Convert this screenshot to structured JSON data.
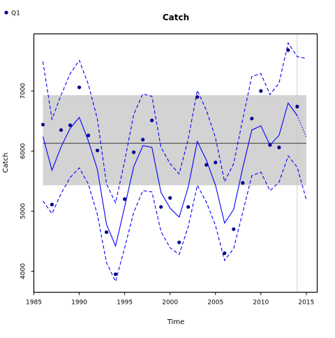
{
  "chart_data": {
    "type": "line",
    "title": "Catch",
    "xlabel": "Time",
    "ylabel": "Catch",
    "xlim": [
      1985,
      2016.2
    ],
    "ylim": [
      3650,
      7950
    ],
    "x_ticks": [
      1985,
      1990,
      1995,
      2000,
      2005,
      2010,
      2015
    ],
    "y_ticks": [
      4000,
      5000,
      6000,
      7000
    ],
    "legend": {
      "position": "top-left",
      "entries": [
        {
          "name": "Q1",
          "color": "#00008b"
        }
      ]
    },
    "band": {
      "x_range": [
        1986,
        2015
      ],
      "y_range": [
        5430,
        6930
      ],
      "color": "#d3d3d3"
    },
    "hline": {
      "y": 6130,
      "x_range": [
        1986,
        2015
      ],
      "color": "#000000"
    },
    "vline": {
      "x": 2014,
      "color": "#cccccc"
    },
    "years": [
      1986,
      1987,
      1988,
      1989,
      1990,
      1991,
      1992,
      1993,
      1994,
      1995,
      1996,
      1997,
      1998,
      1999,
      2000,
      2001,
      2002,
      2003,
      2004,
      2005,
      2006,
      2007,
      2008,
      2009,
      2010,
      2011,
      2012,
      2013,
      2014,
      2015
    ],
    "series": [
      {
        "name": "Q1",
        "kind": "points",
        "color": "#00008b",
        "x": [
          1986,
          1987,
          1988,
          1989,
          1990,
          1991,
          1992,
          1993,
          1994,
          1995,
          1996,
          1997,
          1998,
          1999,
          2000,
          2001,
          2002,
          2003,
          2004,
          2005,
          2006,
          2007,
          2008,
          2009,
          2010,
          2011,
          2012,
          2013,
          2014
        ],
        "values": [
          6440,
          5110,
          6350,
          6430,
          7060,
          6260,
          6010,
          4650,
          3950,
          5200,
          5980,
          6190,
          6510,
          5070,
          5220,
          4480,
          5070,
          6900,
          5770,
          5810,
          4300,
          4700,
          5470,
          6540,
          7000,
          6100,
          6060,
          7680,
          6740
        ]
      },
      {
        "kind": "line",
        "color": "#0000ff",
        "dash": "solid",
        "x": [
          1986,
          1987,
          1988,
          1989,
          1990,
          1991,
          1992,
          1993,
          1994,
          1995,
          1996,
          1997,
          1998,
          1999,
          2000,
          2001,
          2002,
          2003,
          2004,
          2005,
          2006,
          2007,
          2008,
          2009,
          2010,
          2011,
          2012,
          2013,
          2014
        ],
        "values": [
          6240,
          5680,
          6070,
          6380,
          6560,
          6170,
          5690,
          4780,
          4420,
          5070,
          5740,
          6090,
          6060,
          5310,
          5050,
          4900,
          5400,
          6160,
          5850,
          5430,
          4800,
          5030,
          5720,
          6350,
          6420,
          6100,
          6260,
          6800,
          6590
        ]
      },
      {
        "kind": "line",
        "color": "#0000ff",
        "dash": "dashed",
        "x": [
          1986,
          1987,
          1988,
          1989,
          1990,
          1991,
          1992,
          1993,
          1994,
          1995,
          1996,
          1997,
          1998,
          1999,
          2000,
          2001,
          2002,
          2003,
          2004,
          2005,
          2006,
          2007,
          2008,
          2009,
          2010,
          2011,
          2012,
          2013,
          2014,
          2015
        ],
        "values": [
          7490,
          6530,
          6930,
          7290,
          7510,
          7110,
          6530,
          5450,
          5140,
          5830,
          6610,
          6950,
          6910,
          6060,
          5790,
          5620,
          6200,
          7010,
          6680,
          6220,
          5490,
          5790,
          6530,
          7240,
          7290,
          6940,
          7130,
          7800,
          7570,
          7540
        ]
      },
      {
        "kind": "line",
        "color": "#0000ff",
        "dash": "dashed",
        "x": [
          1986,
          1987,
          1988,
          1989,
          1990,
          1991,
          1992,
          1993,
          1994,
          1995,
          1996,
          1997,
          1998,
          1999,
          2000,
          2001,
          2002,
          2003,
          2004,
          2005,
          2006,
          2007,
          2008,
          2009,
          2010,
          2011,
          2012,
          2013,
          2014,
          2015
        ],
        "values": [
          5170,
          4960,
          5290,
          5560,
          5720,
          5450,
          4940,
          4140,
          3830,
          4390,
          4980,
          5340,
          5320,
          4660,
          4390,
          4280,
          4740,
          5430,
          5150,
          4760,
          4180,
          4380,
          4980,
          5590,
          5650,
          5340,
          5480,
          5920,
          5730,
          5190
        ]
      },
      {
        "kind": "line",
        "color": "#0000ff",
        "dash": "dotted",
        "x": [
          2014,
          2015
        ],
        "values": [
          6590,
          6230
        ]
      }
    ]
  }
}
